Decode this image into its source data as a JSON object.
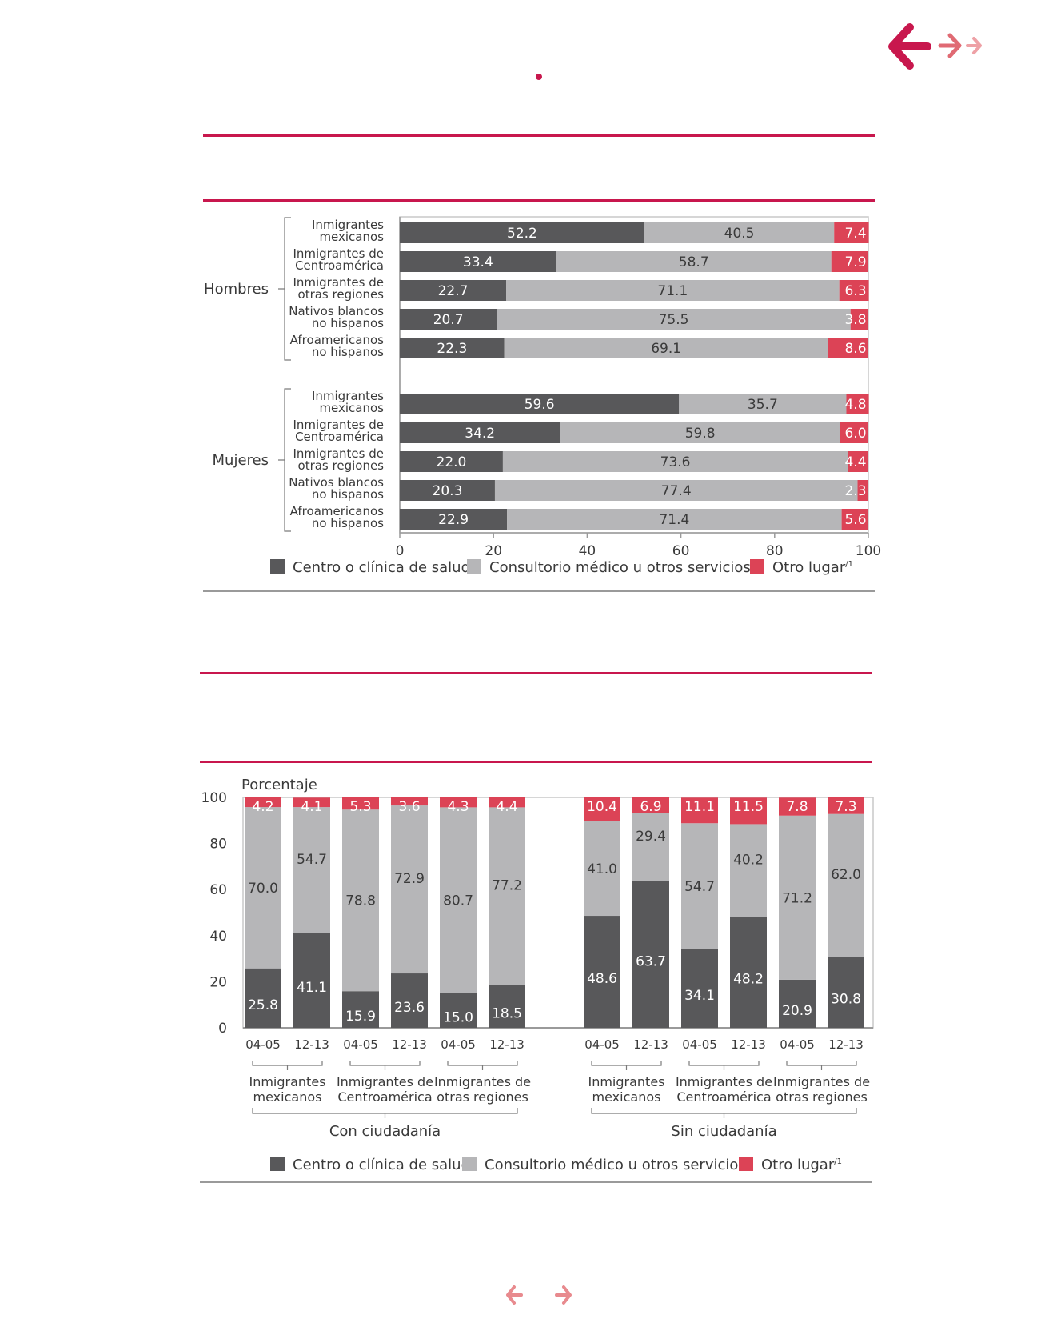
{
  "colors": {
    "dark": "#58585a",
    "light": "#b6b6b8",
    "red": "#dc4356",
    "accent": "#c8174d",
    "nav_light": "#e88a8e"
  },
  "nav": {
    "top_back_icon": "arrow-left-icon",
    "top_forward_icon": "arrow-right-icon",
    "top_last_icon": "arrow-right-small-icon",
    "bottom_prev_icon": "arrow-left-icon",
    "bottom_next_icon": "arrow-right-icon"
  },
  "legend": {
    "items": [
      {
        "label": "Centro o clínica de salud",
        "color": "#58585a"
      },
      {
        "label": "Consultorio médico u otros servicios",
        "color": "#b6b6b8"
      },
      {
        "label": "Otro lugar",
        "sup": "/1",
        "color": "#dc4356"
      }
    ]
  },
  "chart_data": [
    {
      "type": "bar",
      "orientation": "horizontal",
      "stacked": true,
      "xlim": [
        0,
        100
      ],
      "xticks": [
        "0",
        "20",
        "40",
        "60",
        "80",
        "100"
      ],
      "groups": [
        {
          "name": "Hombres",
          "categories": [
            [
              "Inmigrantes",
              "mexicanos"
            ],
            [
              "Inmigrantes de",
              "Centroamérica"
            ],
            [
              "Inmigrantes de",
              "otras regiones"
            ],
            [
              "Nativos blancos",
              "no hispanos"
            ],
            [
              "Afroamericanos",
              "no hispanos"
            ]
          ],
          "series": [
            {
              "name": "Centro o clínica de salud",
              "values": [
                52.2,
                33.4,
                22.7,
                20.7,
                22.3
              ],
              "labels": [
                "52.2",
                "33.4",
                "22.7",
                "20.7",
                "22.3"
              ]
            },
            {
              "name": "Consultorio médico u otros servicios",
              "values": [
                40.5,
                58.7,
                71.1,
                75.5,
                69.1
              ],
              "labels": [
                "40.5",
                "58.7",
                "71.1",
                "75.5",
                "69.1"
              ]
            },
            {
              "name": "Otro lugar",
              "values": [
                7.4,
                7.9,
                6.3,
                3.8,
                8.6
              ],
              "labels": [
                "7.4",
                "7.9",
                "6.3",
                "3.8",
                "8.6"
              ]
            }
          ]
        },
        {
          "name": "Mujeres",
          "categories": [
            [
              "Inmigrantes",
              "mexicanos"
            ],
            [
              "Inmigrantes de",
              "Centroamérica"
            ],
            [
              "Inmigrantes de",
              "otras regiones"
            ],
            [
              "Nativos blancos",
              "no hispanos"
            ],
            [
              "Afroamericanos",
              "no hispanos"
            ]
          ],
          "series": [
            {
              "name": "Centro o clínica de salud",
              "values": [
                59.6,
                34.2,
                22.0,
                20.3,
                22.9
              ],
              "labels": [
                "59.6",
                "34.2",
                "22.0",
                "20.3",
                "22.9"
              ]
            },
            {
              "name": "Consultorio médico u otros servicios",
              "values": [
                35.7,
                59.8,
                73.6,
                77.4,
                71.4
              ],
              "labels": [
                "35.7",
                "59.8",
                "73.6",
                "77.4",
                "71.4"
              ]
            },
            {
              "name": "Otro lugar",
              "values": [
                4.8,
                6.0,
                4.4,
                2.3,
                5.6
              ],
              "labels": [
                "4.8",
                "6.0",
                "4.4",
                "2.3",
                "5.6"
              ]
            }
          ]
        }
      ]
    },
    {
      "type": "bar",
      "orientation": "vertical",
      "stacked": true,
      "ylabel": "Porcentaje",
      "ylim": [
        0,
        100
      ],
      "yticks": [
        "0",
        "20",
        "40",
        "60",
        "80",
        "100"
      ],
      "groups": [
        {
          "name": "Con ciudadanía",
          "subgroups": [
            {
              "name": [
                "Inmigrantes",
                "mexicanos"
              ],
              "periods": [
                "04-05",
                "12-13"
              ]
            },
            {
              "name": [
                "Inmigrantes de",
                "Centroamérica"
              ],
              "periods": [
                "04-05",
                "12-13"
              ]
            },
            {
              "name": [
                "Inmigrantes de",
                "otras regiones"
              ],
              "periods": [
                "04-05",
                "12-13"
              ]
            }
          ],
          "series": [
            {
              "name": "Centro o clínica de salud",
              "values": [
                25.8,
                41.1,
                15.9,
                23.6,
                15.0,
                18.5
              ],
              "labels": [
                "25.8",
                "41.1",
                "15.9",
                "23.6",
                "15.0",
                "18.5"
              ]
            },
            {
              "name": "Consultorio médico u otros servicios",
              "values": [
                70.0,
                54.7,
                78.8,
                72.9,
                80.7,
                77.2
              ],
              "labels": [
                "70.0",
                "54.7",
                "78.8",
                "72.9",
                "80.7",
                "77.2"
              ]
            },
            {
              "name": "Otro lugar",
              "values": [
                4.2,
                4.1,
                5.3,
                3.6,
                4.3,
                4.4
              ],
              "labels": [
                "4.2",
                "4.1",
                "5.3",
                "3.6",
                "4.3",
                "4.4"
              ]
            }
          ]
        },
        {
          "name": "Sin ciudadanía",
          "subgroups": [
            {
              "name": [
                "Inmigrantes",
                "mexicanos"
              ],
              "periods": [
                "04-05",
                "12-13"
              ]
            },
            {
              "name": [
                "Inmigrantes de",
                "Centroamérica"
              ],
              "periods": [
                "04-05",
                "12-13"
              ]
            },
            {
              "name": [
                "Inmigrantes de",
                "otras regiones"
              ],
              "periods": [
                "04-05",
                "12-13"
              ]
            }
          ],
          "series": [
            {
              "name": "Centro o clínica de salud",
              "values": [
                48.6,
                63.7,
                34.1,
                48.2,
                20.9,
                30.8
              ],
              "labels": [
                "48.6",
                "63.7",
                "34.1",
                "48.2",
                "20.9",
                "30.8"
              ]
            },
            {
              "name": "Consultorio médico u otros servicios",
              "values": [
                41.0,
                29.4,
                54.7,
                40.2,
                71.2,
                62.0
              ],
              "labels": [
                "41.0",
                "29.4",
                "54.7",
                "40.2",
                "71.2",
                "62.0"
              ]
            },
            {
              "name": "Otro lugar",
              "values": [
                10.4,
                6.9,
                11.1,
                11.5,
                7.8,
                7.3
              ],
              "labels": [
                "10.4",
                "6.9",
                "11.1",
                "11.5",
                "7.8",
                "7.3"
              ]
            }
          ]
        }
      ]
    }
  ]
}
